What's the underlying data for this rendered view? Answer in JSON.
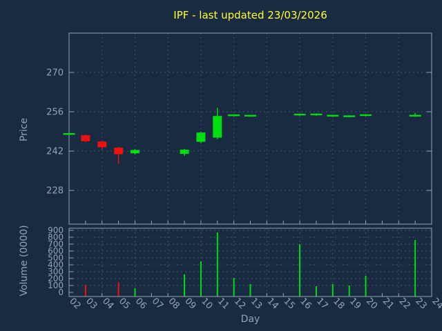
{
  "colors": {
    "background": "#192b40",
    "title": "#ffff33",
    "axis_text": "#8fa5b8",
    "grid": "#41546a",
    "border": "#8fa5b8",
    "up": "#00dd11",
    "down": "#ee1111"
  },
  "chart_data": {
    "type": "candlestick",
    "title": "IPF - last updated 23/03/2026",
    "xlabel": "Day",
    "price_ylabel": "Price",
    "volume_ylabel": "Volume (0000)",
    "x_ticks": [
      "02",
      "03",
      "04",
      "05",
      "06",
      "07",
      "08",
      "09",
      "10",
      "11",
      "12",
      "13",
      "14",
      "15",
      "16",
      "17",
      "18",
      "19",
      "20",
      "21",
      "22",
      "23",
      "24"
    ],
    "price_ticks": [
      228,
      242,
      256,
      270
    ],
    "price_range": [
      216,
      284
    ],
    "volume_ticks": [
      0,
      100,
      200,
      300,
      400,
      500,
      600,
      700,
      800,
      900
    ],
    "volume_range": [
      0,
      930
    ],
    "grid": "on",
    "legend": "none",
    "candles": [
      {
        "day": 2,
        "open": 248.0,
        "high": 248.4,
        "low": 247.6,
        "close": 248.2,
        "direction": "up"
      },
      {
        "day": 3,
        "open": 247.6,
        "high": 247.9,
        "low": 245.2,
        "close": 245.5,
        "direction": "down"
      },
      {
        "day": 4,
        "open": 245.4,
        "high": 245.7,
        "low": 242.6,
        "close": 243.4,
        "direction": "down"
      },
      {
        "day": 5,
        "open": 243.2,
        "high": 243.5,
        "low": 237.4,
        "close": 240.9,
        "direction": "down"
      },
      {
        "day": 6,
        "open": 241.2,
        "high": 242.7,
        "low": 240.8,
        "close": 242.4,
        "direction": "up"
      },
      {
        "day": 9,
        "open": 241.0,
        "high": 242.8,
        "low": 240.3,
        "close": 242.5,
        "direction": "up"
      },
      {
        "day": 10,
        "open": 245.3,
        "high": 248.9,
        "low": 244.8,
        "close": 248.6,
        "direction": "up"
      },
      {
        "day": 11,
        "open": 246.8,
        "high": 257.4,
        "low": 246.2,
        "close": 254.5,
        "direction": "up"
      },
      {
        "day": 12,
        "open": 254.6,
        "high": 255.1,
        "low": 254.3,
        "close": 254.9,
        "direction": "up"
      },
      {
        "day": 13,
        "open": 254.5,
        "high": 254.9,
        "low": 254.2,
        "close": 254.7,
        "direction": "up"
      },
      {
        "day": 16,
        "open": 254.9,
        "high": 255.3,
        "low": 254.6,
        "close": 255.1,
        "direction": "up"
      },
      {
        "day": 17,
        "open": 254.9,
        "high": 255.4,
        "low": 254.5,
        "close": 255.2,
        "direction": "up"
      },
      {
        "day": 18,
        "open": 254.5,
        "high": 254.9,
        "low": 254.2,
        "close": 254.7,
        "direction": "up"
      },
      {
        "day": 19,
        "open": 254.3,
        "high": 254.7,
        "low": 254.0,
        "close": 254.5,
        "direction": "up"
      },
      {
        "day": 20,
        "open": 254.7,
        "high": 255.1,
        "low": 254.4,
        "close": 254.9,
        "direction": "up"
      },
      {
        "day": 23,
        "open": 254.5,
        "high": 255.6,
        "low": 254.2,
        "close": 254.7,
        "direction": "up"
      }
    ],
    "volumes": [
      {
        "day": 3,
        "value": 110,
        "direction": "down"
      },
      {
        "day": 5,
        "value": 150,
        "direction": "down"
      },
      {
        "day": 6,
        "value": 60,
        "direction": "up"
      },
      {
        "day": 9,
        "value": 260,
        "direction": "up"
      },
      {
        "day": 10,
        "value": 450,
        "direction": "up"
      },
      {
        "day": 11,
        "value": 870,
        "direction": "up"
      },
      {
        "day": 12,
        "value": 210,
        "direction": "up"
      },
      {
        "day": 13,
        "value": 120,
        "direction": "up"
      },
      {
        "day": 16,
        "value": 700,
        "direction": "up"
      },
      {
        "day": 17,
        "value": 90,
        "direction": "up"
      },
      {
        "day": 18,
        "value": 120,
        "direction": "up"
      },
      {
        "day": 19,
        "value": 100,
        "direction": "up"
      },
      {
        "day": 20,
        "value": 240,
        "direction": "up"
      },
      {
        "day": 23,
        "value": 760,
        "direction": "up"
      }
    ]
  }
}
